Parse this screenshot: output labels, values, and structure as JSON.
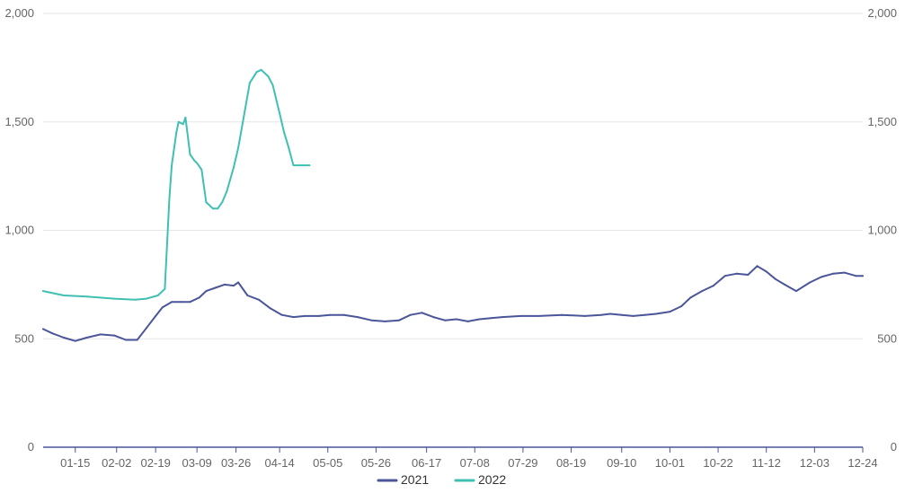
{
  "chart_data": {
    "type": "line",
    "x_categories": [
      "01-15",
      "02-02",
      "02-19",
      "03-09",
      "03-26",
      "04-14",
      "05-05",
      "05-26",
      "06-17",
      "07-08",
      "07-29",
      "08-19",
      "09-10",
      "10-01",
      "10-22",
      "11-12",
      "12-03",
      "12-24"
    ],
    "ylim": [
      0,
      2000
    ],
    "y_ticks": [
      "0",
      "500",
      "1,000",
      "1,500",
      "2,000"
    ],
    "y_ticks_right": [
      "0",
      "500",
      "1,000",
      "1,500",
      "2,000"
    ],
    "grid": "horizontal",
    "legend": "bottom-center",
    "series": [
      {
        "name": "2021",
        "color": "#4a5699",
        "x": [
          "01-01",
          "01-05",
          "01-10",
          "01-15",
          "01-20",
          "01-26",
          "02-01",
          "02-06",
          "02-11",
          "02-15",
          "02-19",
          "02-22",
          "02-26",
          "03-02",
          "03-06",
          "03-10",
          "03-13",
          "03-17",
          "03-21",
          "03-25",
          "03-27",
          "03-31",
          "04-05",
          "04-10",
          "04-15",
          "04-20",
          "04-25",
          "05-01",
          "05-06",
          "05-12",
          "05-18",
          "05-24",
          "05-30",
          "06-05",
          "06-10",
          "06-15",
          "06-20",
          "06-25",
          "06-30",
          "07-05",
          "07-10",
          "07-15",
          "07-20",
          "07-28",
          "08-05",
          "08-15",
          "08-25",
          "09-01",
          "09-05",
          "09-10",
          "09-15",
          "09-20",
          "09-25",
          "10-01",
          "10-06",
          "10-10",
          "10-15",
          "10-20",
          "10-25",
          "10-30",
          "11-04",
          "11-08",
          "11-12",
          "11-16",
          "11-20",
          "11-25",
          "12-01",
          "12-06",
          "12-11",
          "12-16",
          "12-21",
          "12-24"
        ],
        "y": [
          545,
          525,
          505,
          490,
          505,
          520,
          515,
          495,
          495,
          550,
          605,
          645,
          670,
          670,
          670,
          690,
          720,
          735,
          750,
          745,
          760,
          700,
          680,
          640,
          610,
          600,
          605,
          605,
          610,
          610,
          600,
          585,
          580,
          585,
          610,
          620,
          600,
          585,
          590,
          580,
          590,
          595,
          600,
          605,
          605,
          610,
          605,
          610,
          615,
          610,
          605,
          610,
          615,
          625,
          650,
          690,
          720,
          745,
          790,
          800,
          795,
          835,
          810,
          775,
          750,
          720,
          760,
          785,
          800,
          805,
          790,
          790
        ]
      },
      {
        "name": "2022",
        "color": "#40bfb3",
        "x": [
          "01-01",
          "01-10",
          "01-20",
          "02-01",
          "02-10",
          "02-15",
          "02-20",
          "02-23",
          "02-25",
          "02-26",
          "02-28",
          "03-01",
          "03-03",
          "03-04",
          "03-06",
          "03-08",
          "03-09",
          "03-11",
          "03-13",
          "03-16",
          "03-18",
          "03-20",
          "03-22",
          "03-25",
          "03-27",
          "03-30",
          "04-01",
          "04-04",
          "04-06",
          "04-09",
          "04-11",
          "04-14",
          "04-16",
          "04-18",
          "04-20",
          "04-22",
          "04-24",
          "04-26",
          "04-27"
        ],
        "y": [
          720,
          700,
          695,
          685,
          680,
          685,
          700,
          730,
          1150,
          1300,
          1450,
          1500,
          1490,
          1520,
          1350,
          1320,
          1310,
          1280,
          1130,
          1100,
          1100,
          1130,
          1180,
          1290,
          1380,
          1560,
          1680,
          1730,
          1740,
          1710,
          1670,
          1540,
          1450,
          1380,
          1300,
          1300,
          1300,
          1300,
          1300
        ]
      }
    ]
  }
}
